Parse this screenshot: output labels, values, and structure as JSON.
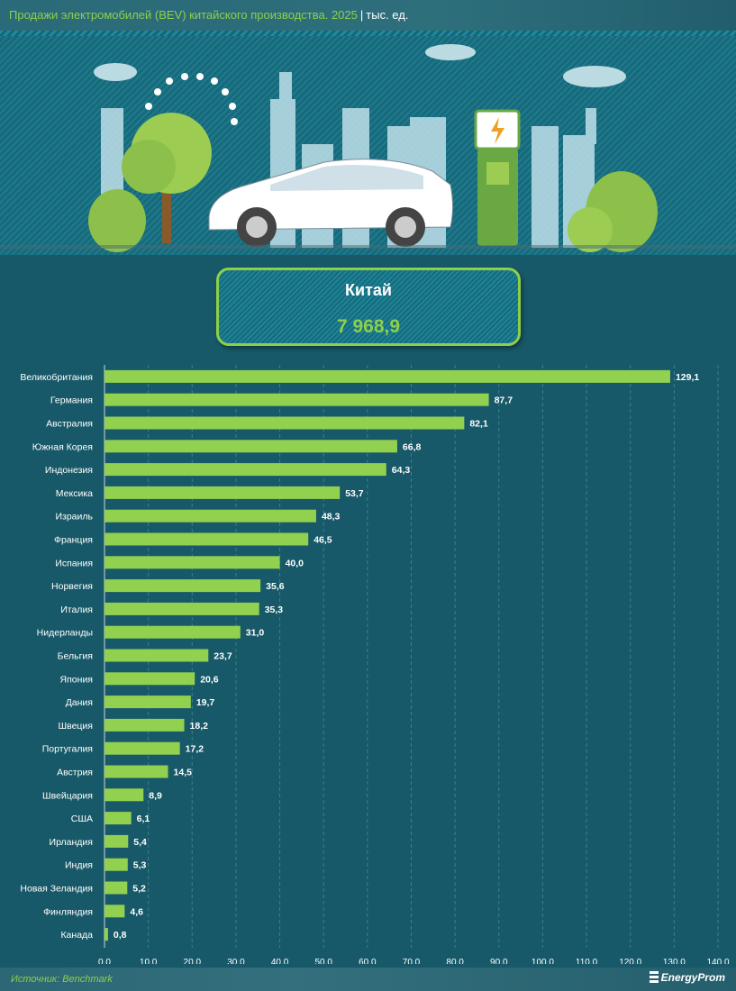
{
  "header": {
    "title": "Продажи электромобилей (BEV) китайского производства. 2025",
    "separator": "|",
    "unit": "тыс. ед."
  },
  "highlight": {
    "label": "Китай",
    "value": "7 968,9"
  },
  "footer": {
    "source": "Источник: Benchmark",
    "logo": "EnergyProm"
  },
  "colors": {
    "bar": "#92d050",
    "background": "#175968",
    "accent": "#8ecf4a"
  },
  "chart_data": {
    "type": "bar",
    "orientation": "horizontal",
    "title": "Продажи электромобилей (BEV) китайского производства. 2025",
    "unit": "тыс. ед.",
    "categories": [
      "Великобритания",
      "Германия",
      "Австралия",
      "Южная Корея",
      "Индонезия",
      "Мексика",
      "Израиль",
      "Франция",
      "Испания",
      "Норвегия",
      "Италия",
      "Нидерланды",
      "Бельгия",
      "Япония",
      "Дания",
      "Швеция",
      "Португалия",
      "Австрия",
      "Швейцария",
      "США",
      "Ирландия",
      "Индия",
      "Новая Зеландия",
      "Финляндия",
      "Канада"
    ],
    "values": [
      129.1,
      87.7,
      82.1,
      66.8,
      64.3,
      53.7,
      48.3,
      46.5,
      40.0,
      35.6,
      35.3,
      31.0,
      23.7,
      20.6,
      19.7,
      18.2,
      17.2,
      14.5,
      8.9,
      6.1,
      5.4,
      5.3,
      5.2,
      4.6,
      0.8
    ],
    "labels": [
      "129,1",
      "87,7",
      "82,1",
      "66,8",
      "64,3",
      "53,7",
      "48,3",
      "46,5",
      "40,0",
      "35,6",
      "35,3",
      "31,0",
      "23,7",
      "20,6",
      "19,7",
      "18,2",
      "17,2",
      "14,5",
      "8,9",
      "6,1",
      "5,4",
      "5,3",
      "5,2",
      "4,6",
      "0,8"
    ],
    "xlim": [
      0,
      140
    ],
    "xticks": [
      "0,0",
      "10,0",
      "20,0",
      "30,0",
      "40,0",
      "50,0",
      "60,0",
      "70,0",
      "80,0",
      "90,0",
      "100,0",
      "110,0",
      "120,0",
      "130,0",
      "140,0"
    ],
    "grid": true
  }
}
